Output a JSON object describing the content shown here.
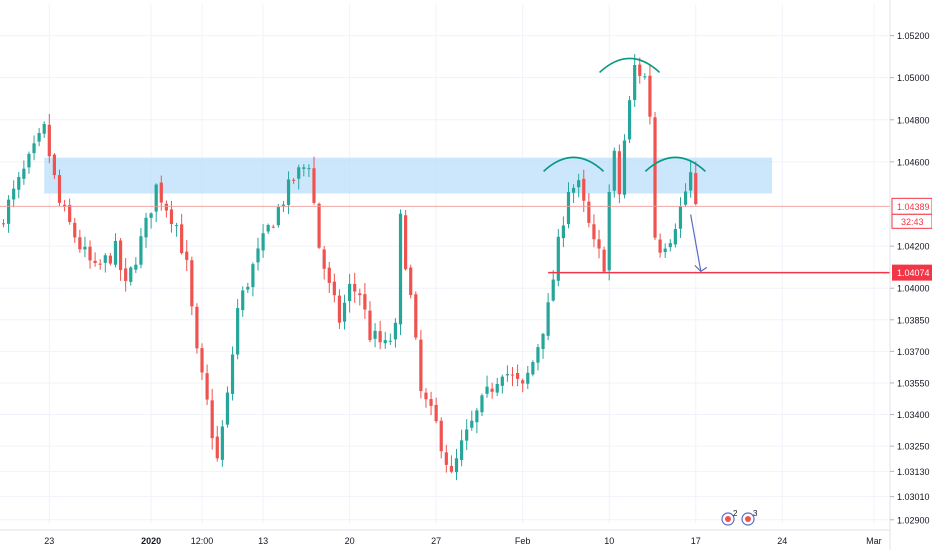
{
  "chart_data": {
    "type": "candlestick",
    "y_axis": {
      "range": [
        1.0288,
        1.0535
      ],
      "ticks": [
        "1.05200",
        "1.05000",
        "1.04800",
        "1.04600",
        "1.04200",
        "1.04000",
        "1.03850",
        "1.03700",
        "1.03550",
        "1.03400",
        "1.03250",
        "1.03130",
        "1.03010",
        "1.02900"
      ]
    },
    "x_axis": {
      "labels": [
        {
          "text": "23",
          "idx": 9
        },
        {
          "text": "2020",
          "idx": 29,
          "bold": true
        },
        {
          "text": "12:00",
          "idx": 39
        },
        {
          "text": "13",
          "idx": 51
        },
        {
          "text": "20",
          "idx": 68
        },
        {
          "text": "27",
          "idx": 85
        },
        {
          "text": "Feb",
          "idx": 102
        },
        {
          "text": "10",
          "idx": 119
        },
        {
          "text": "17",
          "idx": 136
        },
        {
          "text": "24",
          "idx": 153
        },
        {
          "text": "Mar",
          "idx": 171
        }
      ]
    },
    "price_line": {
      "value": 1.04389,
      "label": "1.04389",
      "countdown": "32:43"
    },
    "support_line": {
      "value": 1.04074,
      "label": "1.04074",
      "start_idx": 107
    },
    "resistance_zone": {
      "low": 1.0445,
      "high": 1.0462,
      "start_idx": 8,
      "end_idx": 151
    },
    "shoulders_arcs": [
      {
        "name": "left-shoulder",
        "center_idx": 112,
        "peak": 1.0465
      },
      {
        "name": "head",
        "center_idx": 123,
        "peak": 1.0512
      },
      {
        "name": "right-shoulder",
        "center_idx": 132,
        "peak": 1.0465
      }
    ],
    "projection_arrow": {
      "from_idx": 135,
      "from": 1.0435,
      "to_idx": 137,
      "to": 1.0408
    },
    "events": [
      {
        "name": "event-au",
        "count": "2"
      },
      {
        "name": "event-us",
        "count": "3"
      }
    ],
    "segments": [
      [
        0,
        1.0435
      ],
      [
        4,
        1.0455
      ],
      [
        8,
        1.0475
      ],
      [
        11,
        1.044
      ],
      [
        15,
        1.042
      ],
      [
        18,
        1.0408
      ],
      [
        22,
        1.0418
      ],
      [
        24,
        1.04
      ],
      [
        28,
        1.043
      ],
      [
        30,
        1.0448
      ],
      [
        34,
        1.043
      ],
      [
        36,
        1.041
      ],
      [
        38,
        1.0368
      ],
      [
        40,
        1.0345
      ],
      [
        42,
        1.0318
      ],
      [
        44,
        1.0348
      ],
      [
        46,
        1.039
      ],
      [
        49,
        1.041
      ],
      [
        52,
        1.0428
      ],
      [
        57,
        1.0452
      ],
      [
        60,
        1.046
      ],
      [
        62,
        1.042
      ],
      [
        64,
        1.04
      ],
      [
        66,
        1.0385
      ],
      [
        68,
        1.04
      ],
      [
        70,
        1.0398
      ],
      [
        72,
        1.0378
      ],
      [
        75,
        1.0372
      ],
      [
        77,
        1.038
      ],
      [
        78,
        1.0432
      ],
      [
        80,
        1.0395
      ],
      [
        82,
        1.035
      ],
      [
        85,
        1.0335
      ],
      [
        88,
        1.031
      ],
      [
        90,
        1.0325
      ],
      [
        94,
        1.0345
      ],
      [
        98,
        1.0362
      ],
      [
        102,
        1.0352
      ],
      [
        104,
        1.0365
      ],
      [
        107,
        1.039
      ],
      [
        109,
        1.042
      ],
      [
        111,
        1.0448
      ],
      [
        113,
        1.0448
      ],
      [
        116,
        1.042
      ],
      [
        118,
        1.0412
      ],
      [
        119,
        1.0445
      ],
      [
        120,
        1.0462
      ],
      [
        121,
        1.0445
      ],
      [
        122,
        1.047
      ],
      [
        124,
        1.0505
      ],
      [
        126,
        1.05
      ],
      [
        127,
        1.0483
      ],
      [
        128,
        1.0425
      ],
      [
        129,
        1.042
      ],
      [
        131,
        1.0425
      ],
      [
        133,
        1.0438
      ],
      [
        135,
        1.0454
      ],
      [
        136,
        1.044
      ]
    ]
  }
}
